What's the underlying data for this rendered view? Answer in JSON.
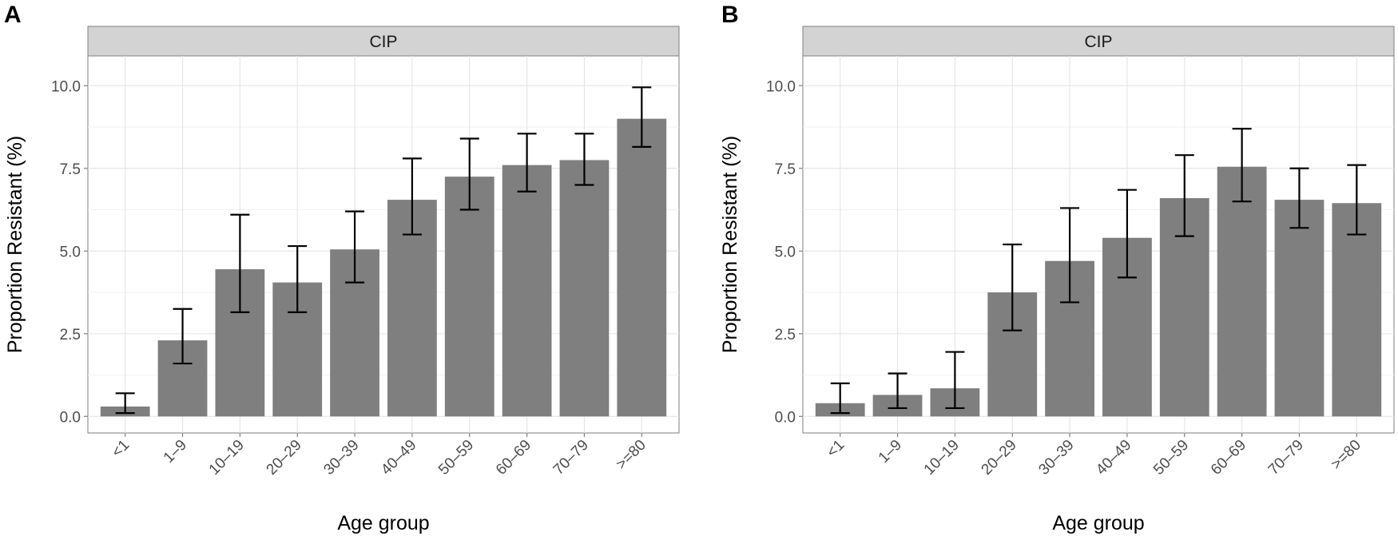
{
  "chart_data": [
    {
      "panel": "A",
      "type": "bar",
      "strip_label": "CIP",
      "xlabel": "Age group",
      "ylabel": "Proportion Resistant (%)",
      "ylim": [
        -0.5,
        10.9
      ],
      "yticks": [
        0.0,
        2.5,
        5.0,
        7.5,
        10.0
      ],
      "ytick_labels": [
        "0.0",
        "2.5",
        "5.0",
        "7.5",
        "10.0"
      ],
      "grid": true,
      "categories": [
        "<1",
        "1–9",
        "10–19",
        "20–29",
        "30–39",
        "40–49",
        "50–59",
        "60–69",
        "70–79",
        ">=80"
      ],
      "values": [
        0.3,
        2.3,
        4.45,
        4.05,
        5.05,
        6.55,
        7.25,
        7.6,
        7.75,
        9.0
      ],
      "error_low": [
        0.1,
        1.6,
        3.15,
        3.15,
        4.05,
        5.5,
        6.25,
        6.8,
        7.0,
        8.15
      ],
      "error_high": [
        0.7,
        3.25,
        6.1,
        5.15,
        6.2,
        7.8,
        8.4,
        8.55,
        8.55,
        9.95
      ]
    },
    {
      "panel": "B",
      "type": "bar",
      "strip_label": "CIP",
      "xlabel": "Age group",
      "ylabel": "Proportion Resistant (%)",
      "ylim": [
        -0.5,
        10.9
      ],
      "yticks": [
        0.0,
        2.5,
        5.0,
        7.5,
        10.0
      ],
      "ytick_labels": [
        "0.0",
        "2.5",
        "5.0",
        "7.5",
        "10.0"
      ],
      "grid": true,
      "categories": [
        "<1",
        "1–9",
        "10–19",
        "20–29",
        "30–39",
        "40–49",
        "50–59",
        "60–69",
        "70–79",
        ">=80"
      ],
      "values": [
        0.4,
        0.65,
        0.85,
        3.75,
        4.7,
        5.4,
        6.6,
        7.55,
        6.55,
        6.45
      ],
      "error_low": [
        0.1,
        0.25,
        0.25,
        2.6,
        3.45,
        4.2,
        5.45,
        6.5,
        5.7,
        5.5
      ],
      "error_high": [
        1.0,
        1.3,
        1.95,
        5.2,
        6.3,
        6.85,
        7.9,
        8.7,
        7.5,
        7.6
      ]
    }
  ],
  "colors": {
    "bar": "#7f7f7f",
    "strip_bg": "#d3d3d3",
    "grid": "#e6e6e6",
    "border": "#7f7f7f"
  }
}
